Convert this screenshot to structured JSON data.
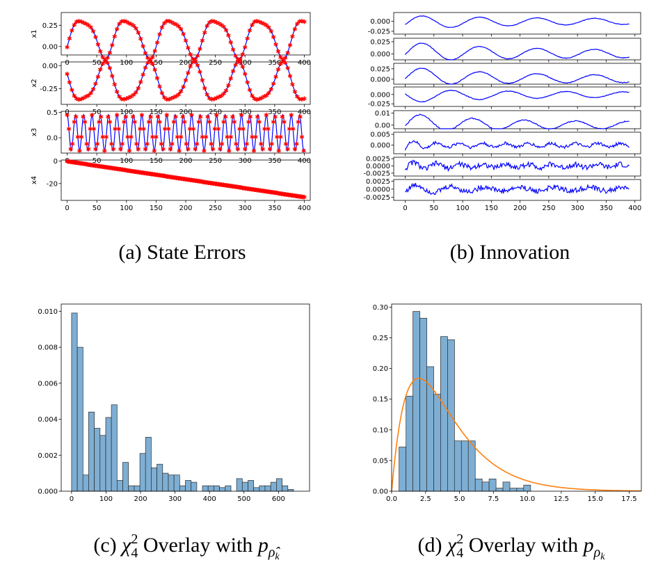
{
  "captions": {
    "a": "(a)  State Errors",
    "b": "(b)  Innovation",
    "c_pre": "(c)  ",
    "c_mid": " Overlay with ",
    "d_pre": "(d)  ",
    "d_mid": " Overlay with "
  },
  "colors": {
    "blue_line": "#0000ff",
    "red_marker": "#ff0000",
    "hist_fill": "#7eaed3",
    "hist_edge": "#2a2a2a",
    "curve": "#ff7f0e"
  },
  "chart_data": [
    {
      "id": "a",
      "type": "line",
      "subplots": [
        {
          "ylabel": "x1",
          "xlim": [
            -10,
            410
          ],
          "ylim": [
            -0.1,
            0.4
          ],
          "yticks": [
            0.0,
            0.25
          ],
          "ytick_labels": [
            "0.00",
            "0.25"
          ],
          "xticks": [
            0,
            50,
            100,
            150,
            200,
            250,
            300,
            350,
            400
          ],
          "wave": {
            "kind": "x1",
            "offset": 0.12,
            "amp": 0.22,
            "period": 75
          }
        },
        {
          "ylabel": "x2",
          "xlim": [
            -10,
            410
          ],
          "ylim": [
            -0.42,
            0.04
          ],
          "yticks": [
            -0.25,
            0.0
          ],
          "ytick_labels": [
            "-0.25",
            "0.00"
          ],
          "xticks": [
            0,
            50,
            100,
            150,
            200,
            250,
            300,
            350,
            400
          ],
          "wave": {
            "kind": "x2",
            "offset": -0.2,
            "amp": 0.2,
            "period": 75
          }
        },
        {
          "ylabel": "x3",
          "xlim": [
            -10,
            410
          ],
          "ylim": [
            -0.3,
            0.52
          ],
          "yticks": [
            0.0,
            0.5
          ],
          "ytick_labels": [
            "0.0",
            "0.5"
          ],
          "xticks": [
            0,
            50,
            100,
            150,
            200,
            250,
            300,
            350,
            400
          ],
          "wave": {
            "kind": "x3",
            "offset": 0.1,
            "amp": 0.35,
            "period": 14
          }
        },
        {
          "ylabel": "x4",
          "xlim": [
            -10,
            410
          ],
          "ylim": [
            -35,
            1
          ],
          "yticks": [
            -20,
            0
          ],
          "ytick_labels": [
            "-20",
            "0"
          ],
          "xticks": [
            0,
            50,
            100,
            150,
            200,
            250,
            300,
            350,
            400
          ],
          "xtick_labels": [
            "0",
            "50",
            "100",
            "150",
            "200",
            "250",
            "300",
            "350",
            "400"
          ],
          "wave": {
            "kind": "x4",
            "start": 0,
            "end": -32
          }
        }
      ]
    },
    {
      "id": "b",
      "type": "line",
      "xlim": [
        -20,
        410
      ],
      "xticks": [
        0,
        50,
        100,
        150,
        200,
        250,
        300,
        350,
        400
      ],
      "xtick_labels": [
        "0",
        "50",
        "100",
        "150",
        "200",
        "250",
        "300",
        "350",
        "400"
      ],
      "subplots": [
        {
          "ylim": [
            -0.032,
            0.022
          ],
          "ytick_labels": [
            "0.000",
            "-0.025"
          ],
          "yticks": [
            0.0,
            -0.025
          ],
          "signal": {
            "amp": 0.018,
            "period": 100,
            "decay": 0.006,
            "noise": 0.0006,
            "bias": -0.003
          }
        },
        {
          "ylim": [
            -0.012,
            0.032
          ],
          "ytick_labels": [
            "0.025",
            "0.000"
          ],
          "yticks": [
            0.025,
            0.0
          ],
          "signal": {
            "amp": 0.02,
            "period": 100,
            "decay": 0.006,
            "noise": 0.0007,
            "bias": 0.005
          }
        },
        {
          "ylim": [
            -0.012,
            0.038
          ],
          "ytick_labels": [
            "0.025",
            "0.000"
          ],
          "yticks": [
            0.025,
            0.0
          ],
          "signal": {
            "amp": 0.022,
            "period": 100,
            "decay": 0.006,
            "noise": 0.0008,
            "bias": 0.008
          }
        },
        {
          "ylim": [
            -0.032,
            0.02
          ],
          "ytick_labels": [
            "0.000",
            "-0.025"
          ],
          "yticks": [
            0.0,
            -0.025
          ],
          "signal": {
            "amp": -0.018,
            "period": 100,
            "decay": 0.006,
            "noise": 0.0008,
            "bias": -0.004
          }
        },
        {
          "ylim": [
            -0.003,
            0.012
          ],
          "ytick_labels": [
            "0.01",
            "0.00"
          ],
          "yticks": [
            0.01,
            0.0
          ],
          "signal": {
            "amp": 0.008,
            "period": 90,
            "decay": 0.008,
            "noise": 0.0004,
            "bias": 0.002
          }
        },
        {
          "ylim": [
            -0.004,
            0.006
          ],
          "ytick_labels": [
            "0.005",
            "0.000"
          ],
          "yticks": [
            0.005,
            0.0
          ],
          "signal": {
            "amp": 0.0025,
            "period": 40,
            "decay": 0.03,
            "noise": 0.0007,
            "bias": 0.0
          }
        },
        {
          "ylim": [
            -0.0035,
            0.003
          ],
          "ytick_labels": [
            "0.0025",
            "0.0000",
            "-0.0025"
          ],
          "yticks": [
            0.0025,
            0.0,
            -0.0025
          ],
          "signal": {
            "amp": 0.0015,
            "period": 40,
            "decay": 0.02,
            "noise": 0.0009,
            "bias": 0.0
          }
        },
        {
          "ylim": [
            -0.0035,
            0.003
          ],
          "ytick_labels": [
            "0.0025",
            "0.0000",
            "-0.0025"
          ],
          "yticks": [
            0.0025,
            0.0,
            -0.0025
          ],
          "signal": {
            "amp": 0.0015,
            "period": 60,
            "decay": 0.015,
            "noise": 0.0008,
            "bias": 0.0
          }
        }
      ]
    },
    {
      "id": "c",
      "type": "bar",
      "bin_width": 16.5,
      "bin_start": 0,
      "values": [
        0.0099,
        0.008,
        0.0009,
        0.0044,
        0.0035,
        0.0031,
        0.0041,
        0.0048,
        0.0006,
        0.0016,
        0.0003,
        0.0003,
        0.0021,
        0.003,
        0.0013,
        0.0015,
        0.001,
        0.0009,
        0.0009,
        0.0003,
        0.0006,
        0.0005,
        0.0,
        0.0003,
        0.0003,
        0.0003,
        0.0002,
        0.0003,
        0.0,
        0.0007,
        0.0005,
        0.0006,
        0.0002,
        0.0003,
        0.0003,
        0.0005,
        0.0007,
        0.0003,
        0.0001
      ],
      "xlim": [
        -30,
        690
      ],
      "ylim": [
        0,
        0.0104
      ],
      "xticks": [
        0,
        100,
        200,
        300,
        400,
        500,
        600
      ],
      "xtick_labels": [
        "0",
        "100",
        "200",
        "300",
        "400",
        "500",
        "600"
      ],
      "yticks": [
        0.0,
        0.002,
        0.004,
        0.006,
        0.008,
        0.01
      ],
      "ytick_labels": [
        "0.000",
        "0.002",
        "0.004",
        "0.006",
        "0.008",
        "0.010"
      ]
    },
    {
      "id": "d",
      "type": "bar",
      "bin_width": 0.51,
      "bin_start": 0.55,
      "values": [
        0.072,
        0.155,
        0.293,
        0.282,
        0.203,
        0.158,
        0.252,
        0.247,
        0.082,
        0.082,
        0.082,
        0.02,
        0.015,
        0.02,
        0.005,
        0.015,
        0.005,
        0.005,
        0.01
      ],
      "xlim": [
        0,
        18.4
      ],
      "ylim": [
        0,
        0.305
      ],
      "xticks": [
        0,
        2.5,
        5,
        7.5,
        10,
        12.5,
        15,
        17.5
      ],
      "xtick_labels": [
        "0.0",
        "2.5",
        "5.0",
        "7.5",
        "10.0",
        "12.5",
        "15.0",
        "17.5"
      ],
      "yticks": [
        0,
        0.05,
        0.1,
        0.15,
        0.2,
        0.25,
        0.3
      ],
      "ytick_labels": [
        "0.00",
        "0.05",
        "0.10",
        "0.15",
        "0.20",
        "0.25",
        "0.30"
      ],
      "overlay_curve": {
        "distribution": "chi2",
        "dof": 4
      }
    }
  ]
}
